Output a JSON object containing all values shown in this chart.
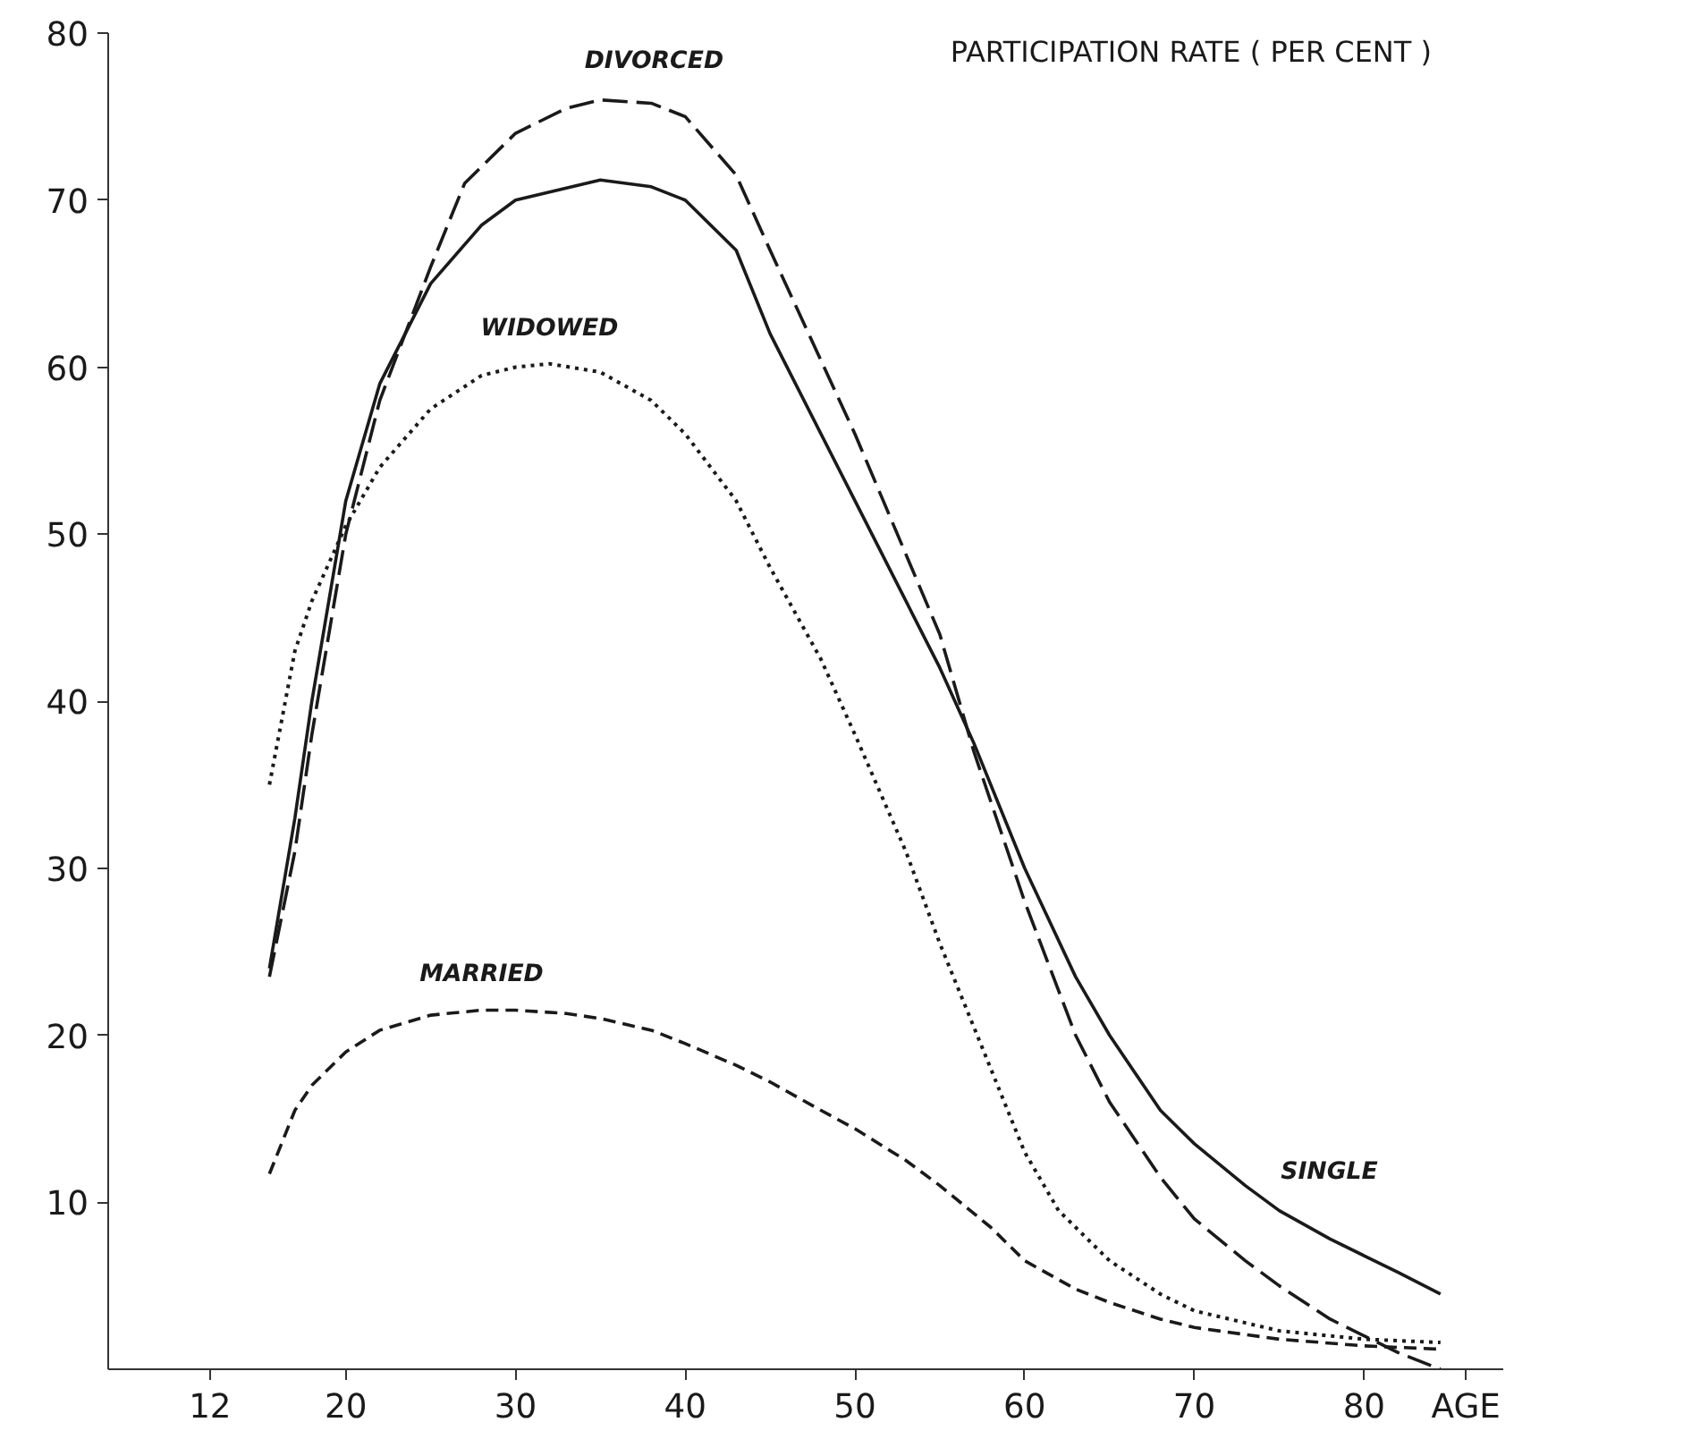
{
  "chart_data": {
    "type": "line",
    "ylabel": "PARTICIPATION RATE ( PER CENT )",
    "xlim": [
      6,
      88.2
    ],
    "ylim": [
      0,
      80
    ],
    "xticks": [
      12,
      20,
      30,
      40,
      50,
      60,
      70,
      80,
      {
        "value": 86,
        "label": "AGE"
      }
    ],
    "yticks": [
      10,
      20,
      30,
      40,
      50,
      60,
      70,
      80
    ],
    "grid": false,
    "marker": "none",
    "series": [
      {
        "name": "SINGLE",
        "color": "#1a1a1a",
        "line_style": "solid",
        "x": [
          15.5,
          17,
          18,
          20,
          22,
          25,
          28,
          30,
          35,
          38,
          40,
          43,
          45,
          50,
          55,
          57,
          60,
          63,
          65,
          68,
          70,
          73,
          75,
          78,
          80,
          82,
          84.5
        ],
        "values": [
          24,
          33,
          40,
          52,
          59,
          65,
          68.5,
          70,
          71.2,
          70.8,
          70,
          67,
          62,
          52,
          42,
          37.5,
          30,
          23.5,
          20,
          15.5,
          13.5,
          11,
          9.5,
          7.8,
          6.8,
          5.8,
          4.5
        ]
      },
      {
        "name": "DIVORCED",
        "color": "#1a1a1a",
        "line_style": "dashed",
        "x": [
          15.5,
          17,
          18,
          20,
          22,
          25,
          27,
          30,
          33,
          35,
          38,
          40,
          43,
          45,
          50,
          55,
          57,
          60,
          63,
          65,
          68,
          70,
          73,
          75,
          78,
          80,
          82,
          84.5
        ],
        "values": [
          23.5,
          31,
          38,
          50,
          58,
          66,
          71,
          74,
          75.5,
          76,
          75.8,
          75,
          71.5,
          67,
          56,
          44,
          37,
          28,
          20,
          16,
          11.5,
          9,
          6.5,
          5,
          3,
          2,
          1,
          0
        ]
      },
      {
        "name": "WIDOWED",
        "color": "#1a1a1a",
        "line_style": "dotted",
        "x": [
          15.5,
          17,
          18,
          20,
          22,
          25,
          28,
          30,
          32,
          35,
          38,
          40,
          43,
          45,
          48,
          50,
          53,
          55,
          58,
          60,
          62,
          65,
          68,
          70,
          75,
          80,
          84.5
        ],
        "values": [
          35,
          43,
          46,
          50.5,
          54,
          57.5,
          59.5,
          60,
          60.2,
          59.7,
          58,
          56,
          52,
          48,
          42.5,
          38,
          31,
          25.5,
          18,
          13,
          9.5,
          6.5,
          4.5,
          3.5,
          2.3,
          1.8,
          1.6
        ]
      },
      {
        "name": "MARRIED",
        "color": "#1a1a1a",
        "line_style": "dashed",
        "x": [
          15.5,
          17,
          18,
          20,
          22,
          25,
          28,
          30,
          33,
          35,
          38,
          40,
          43,
          45,
          48,
          50,
          53,
          55,
          58,
          60,
          63,
          65,
          68,
          70,
          75,
          80,
          84.5
        ],
        "values": [
          11.7,
          15.5,
          17,
          19,
          20.3,
          21.2,
          21.5,
          21.5,
          21.3,
          21,
          20.3,
          19.5,
          18.2,
          17.2,
          15.5,
          14.4,
          12.5,
          11,
          8.5,
          6.5,
          4.8,
          4,
          3,
          2.5,
          1.8,
          1.4,
          1.2
        ]
      }
    ]
  }
}
